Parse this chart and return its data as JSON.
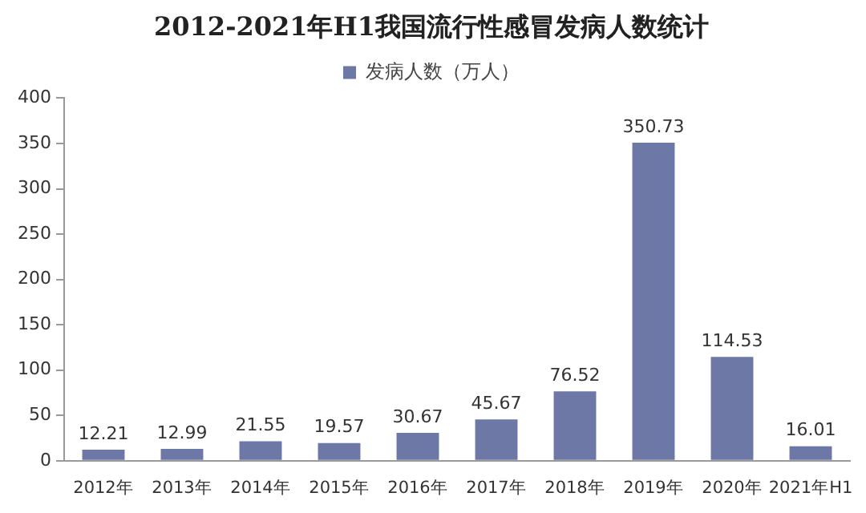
{
  "chart_data": {
    "type": "bar",
    "title": "2012-2021年H1我国流行性感冒发病人数统计",
    "categories": [
      "2012年",
      "2013年",
      "2014年",
      "2015年",
      "2016年",
      "2017年",
      "2018年",
      "2019年",
      "2020年",
      "2021年H1"
    ],
    "series": [
      {
        "name": "发病人数（万人）",
        "color": "#6e78a6",
        "values": [
          12.21,
          12.99,
          21.55,
          19.57,
          30.67,
          45.67,
          76.52,
          350.73,
          114.53,
          16.01
        ]
      }
    ],
    "ylim": [
      0,
      400
    ],
    "yticks": [
      0,
      50,
      100,
      150,
      200,
      250,
      300,
      350,
      400
    ],
    "grid": false,
    "legend": "top",
    "data_labels": true
  }
}
